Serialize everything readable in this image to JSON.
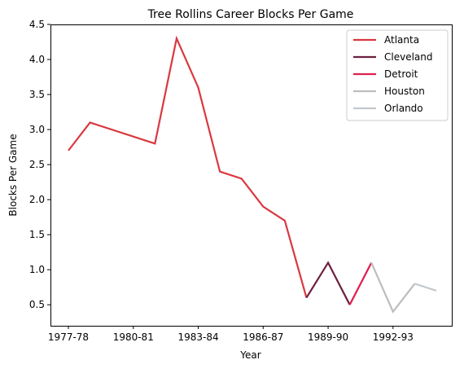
{
  "chart_data": {
    "type": "line",
    "title": "Tree Rollins Career Blocks Per Game",
    "xlabel": "Year",
    "ylabel": "Blocks Per Game",
    "x_categories": [
      "1977-78",
      "1978-79",
      "1979-80",
      "1980-81",
      "1981-82",
      "1982-83",
      "1983-84",
      "1984-85",
      "1985-86",
      "1986-87",
      "1987-88",
      "1988-89",
      "1989-90",
      "1990-91",
      "1991-92",
      "1992-93",
      "1993-94",
      "1994-95"
    ],
    "x_tick_labels": [
      "1977-78",
      "1980-81",
      "1983-84",
      "1986-87",
      "1989-90",
      "1992-93"
    ],
    "ylim": [
      0.2,
      4.5
    ],
    "y_ticks": [
      "0.5",
      "1.0",
      "1.5",
      "2.0",
      "2.5",
      "3.0",
      "3.5",
      "4.0",
      "4.5"
    ],
    "grid": false,
    "legend_position": "top-right",
    "series": [
      {
        "name": "Atlanta",
        "color": "#d9383e",
        "points": [
          [
            "1977-78",
            2.7
          ],
          [
            "1978-79",
            3.1
          ],
          [
            "1981-82",
            2.8
          ],
          [
            "1982-83",
            4.3
          ],
          [
            "1983-84",
            3.6
          ],
          [
            "1984-85",
            2.4
          ],
          [
            "1985-86",
            2.3
          ],
          [
            "1986-87",
            1.9
          ],
          [
            "1987-88",
            1.7
          ],
          [
            "1988-89",
            0.6
          ]
        ]
      },
      {
        "name": "Cleveland",
        "color": "#6e2040",
        "points": [
          [
            "1988-89",
            0.6
          ],
          [
            "1989-90",
            1.1
          ],
          [
            "1990-91",
            0.5
          ]
        ]
      },
      {
        "name": "Detroit",
        "color": "#e0204f",
        "points": [
          [
            "1990-91",
            0.5
          ],
          [
            "1991-92",
            1.1
          ]
        ]
      },
      {
        "name": "Houston",
        "color": "#bdbdbd",
        "points": [
          [
            "1991-92",
            1.1
          ],
          [
            "1992-93",
            0.4
          ],
          [
            "1993-94",
            0.8
          ]
        ]
      },
      {
        "name": "Orlando",
        "color": "#c2c8cc",
        "points": [
          [
            "1993-94",
            0.8
          ],
          [
            "1994-95",
            0.7
          ]
        ]
      }
    ]
  }
}
